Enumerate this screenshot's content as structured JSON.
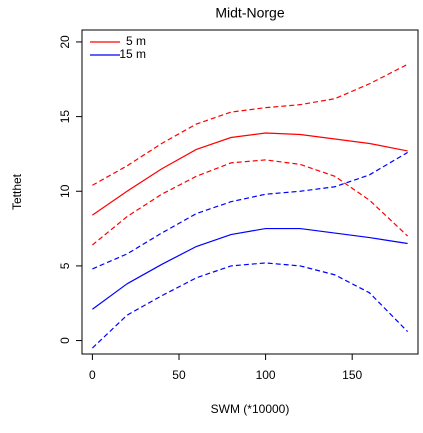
{
  "chart_data": {
    "type": "line",
    "title": "Midt-Norge",
    "x_label": "SWM (*10000)",
    "y_label": "Tetthet",
    "x": [
      0,
      20,
      40,
      60,
      80,
      100,
      120,
      140,
      160,
      182
    ],
    "series": [
      {
        "name": "5 m",
        "color": "#ff0000",
        "values": [
          8.4,
          10.0,
          11.5,
          12.8,
          13.6,
          13.9,
          13.8,
          13.5,
          13.2,
          12.7
        ],
        "upper": [
          10.4,
          11.7,
          13.2,
          14.5,
          15.3,
          15.6,
          15.8,
          16.2,
          17.2,
          18.5
        ],
        "lower": [
          6.4,
          8.3,
          9.8,
          11.0,
          11.9,
          12.1,
          11.8,
          11.0,
          9.4,
          7.0
        ]
      },
      {
        "name": "15 m",
        "color": "#0000ff",
        "values": [
          2.1,
          3.8,
          5.1,
          6.3,
          7.1,
          7.5,
          7.5,
          7.2,
          6.9,
          6.5
        ],
        "upper": [
          4.8,
          5.8,
          7.2,
          8.5,
          9.3,
          9.8,
          10.0,
          10.3,
          11.1,
          12.6
        ],
        "lower": [
          -0.5,
          1.7,
          3.0,
          4.2,
          5.0,
          5.2,
          5.0,
          4.4,
          3.2,
          0.6
        ]
      }
    ],
    "xlim": [
      -6,
      188
    ],
    "xticks": [
      0,
      50,
      100,
      150
    ],
    "ylim": [
      -0.9,
      20.8
    ],
    "yticks": [
      0,
      5,
      10,
      15,
      20
    ],
    "legend": "topleft",
    "grid": false
  }
}
